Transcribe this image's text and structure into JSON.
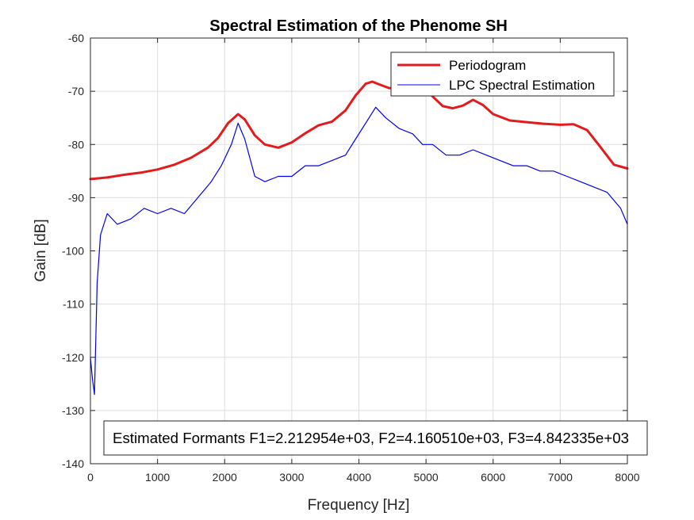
{
  "chart_data": {
    "type": "line",
    "title": "Spectral Estimation of the Phenome SH",
    "xlabel": "Frequency [Hz]",
    "ylabel": "Gain [dB]",
    "xlim": [
      0,
      8000
    ],
    "ylim": [
      -140,
      -60
    ],
    "xticks": [
      0,
      1000,
      2000,
      3000,
      4000,
      5000,
      6000,
      7000,
      8000
    ],
    "yticks": [
      -60,
      -70,
      -80,
      -90,
      -100,
      -110,
      -120,
      -130,
      -140
    ],
    "grid": true,
    "legend_position": "top-right",
    "annotation": "Estimated Formants F1=2.212954e+03, F2=4.160510e+03, F3=4.842335e+03",
    "series": [
      {
        "name": "Periodogram",
        "color": "#e41a1c",
        "x": [
          0,
          250,
          500,
          750,
          1000,
          1250,
          1500,
          1750,
          1900,
          2050,
          2200,
          2300,
          2450,
          2600,
          2800,
          3000,
          3200,
          3400,
          3600,
          3800,
          3950,
          4100,
          4200,
          4300,
          4450,
          4600,
          4750,
          4850,
          5000,
          5100,
          5250,
          5400,
          5550,
          5700,
          5850,
          6000,
          6250,
          6500,
          6750,
          7000,
          7200,
          7400,
          7600,
          7800,
          8000
        ],
        "y": [
          -86.5,
          -86.2,
          -85.7,
          -85.3,
          -84.7,
          -83.8,
          -82.5,
          -80.6,
          -78.8,
          -76.0,
          -74.3,
          -75.3,
          -78.3,
          -80.0,
          -80.6,
          -79.6,
          -77.9,
          -76.4,
          -75.7,
          -73.6,
          -70.8,
          -68.6,
          -68.2,
          -68.7,
          -69.4,
          -69.4,
          -69.1,
          -69.0,
          -69.7,
          -71.0,
          -72.8,
          -73.2,
          -72.7,
          -71.6,
          -72.6,
          -74.3,
          -75.5,
          -75.8,
          -76.1,
          -76.3,
          -76.2,
          -77.3,
          -80.5,
          -83.8,
          -84.5
        ]
      },
      {
        "name": "LPC Spectral Estimation",
        "color": "#0000ee",
        "x": [
          0,
          30,
          60,
          100,
          150,
          250,
          400,
          600,
          800,
          1000,
          1200,
          1400,
          1600,
          1800,
          1950,
          2100,
          2200,
          2300,
          2450,
          2600,
          2800,
          3000,
          3200,
          3400,
          3600,
          3800,
          3950,
          4100,
          4250,
          4400,
          4600,
          4800,
          4950,
          5100,
          5300,
          5500,
          5700,
          5900,
          6100,
          6300,
          6500,
          6700,
          6900,
          7100,
          7300,
          7500,
          7700,
          7900,
          8000
        ],
        "y": [
          -120,
          -124,
          -127,
          -106,
          -97,
          -93,
          -95,
          -94,
          -92,
          -93,
          -92,
          -93,
          -90,
          -87,
          -84,
          -80,
          -76,
          -79,
          -86,
          -87,
          -86,
          -86,
          -84,
          -84,
          -83,
          -82,
          -79,
          -76,
          -73,
          -75,
          -77,
          -78,
          -80,
          -80,
          -82,
          -82,
          -81,
          -82,
          -83,
          -84,
          -84,
          -85,
          -85,
          -86,
          -87,
          -88,
          -89,
          -92,
          -95
        ]
      }
    ]
  }
}
